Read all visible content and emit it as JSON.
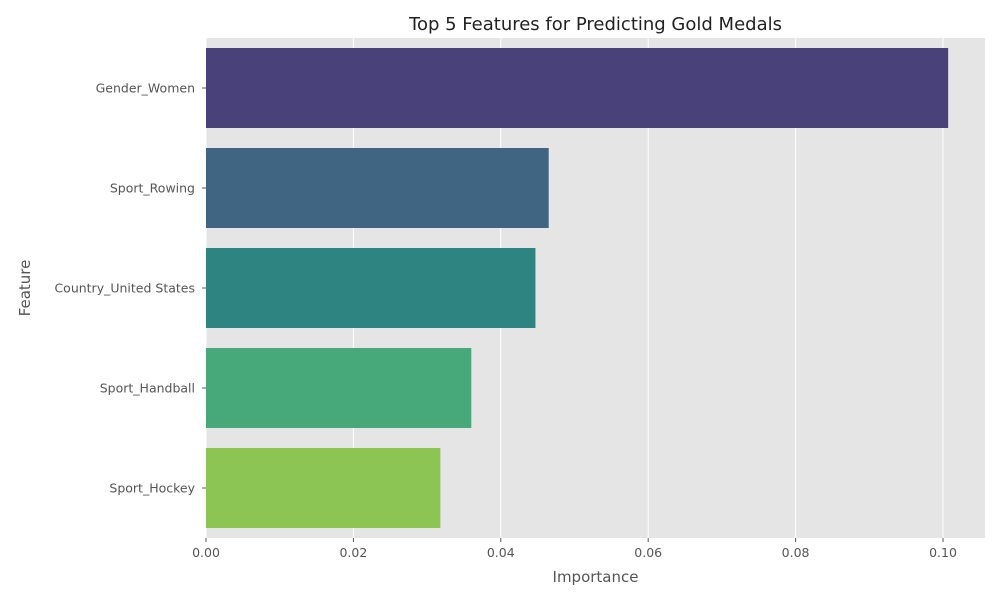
{
  "chart_data": {
    "type": "bar",
    "orientation": "horizontal",
    "title": "Top 5 Features for Predicting Gold Medals",
    "xlabel": "Importance",
    "ylabel": "Feature",
    "categories": [
      "Gender_Women",
      "Sport_Rowing",
      "Country_United States",
      "Sport_Handball",
      "Sport_Hockey"
    ],
    "values": [
      0.1007,
      0.0465,
      0.0447,
      0.036,
      0.0318
    ],
    "colors": [
      "#48417a",
      "#3f6582",
      "#2e8480",
      "#47a879",
      "#8cc554"
    ],
    "xlim": [
      0,
      0.1057
    ],
    "xticks": [
      0.0,
      0.02,
      0.04,
      0.06,
      0.08,
      0.1
    ],
    "xtick_labels": [
      "0.00",
      "0.02",
      "0.04",
      "0.06",
      "0.08",
      "0.10"
    ],
    "grid": true,
    "legend": "none"
  },
  "theme": {
    "plot_background": "#e5e5e5",
    "grid_color": "#ffffff",
    "text_color": "#555555",
    "title_color": "#222222"
  }
}
